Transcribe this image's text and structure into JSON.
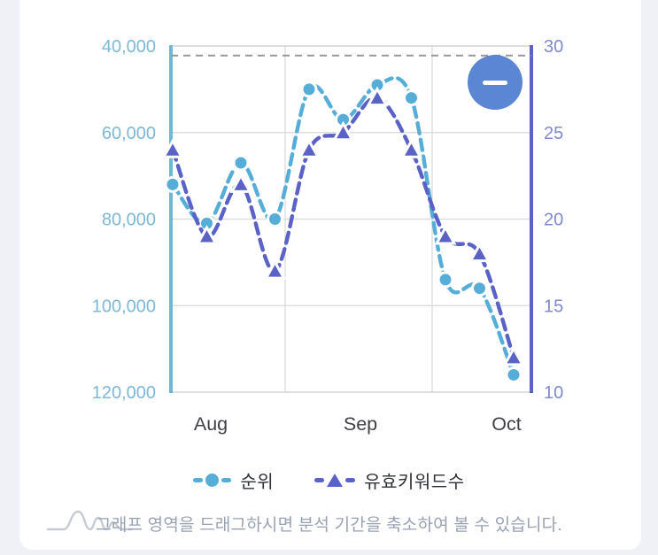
{
  "page": {
    "background": "#eff1f7",
    "card_background": "#ffffff"
  },
  "chart_data": {
    "type": "line",
    "title": "",
    "x_ticks": [
      "Aug",
      "Sep",
      "Oct"
    ],
    "grid": true,
    "legend_position": "bottom",
    "left_axis": {
      "min": 40000,
      "max": 120000,
      "direction": "values-increase-downward",
      "tick_labels": [
        "40,000",
        "60,000",
        "80,000",
        "100,000",
        "120,000"
      ],
      "color": "#7db8d6",
      "axis_line_color": "#6db7d8"
    },
    "right_axis": {
      "min": 10,
      "max": 30,
      "direction": "values-increase-upward",
      "tick_labels": [
        "30",
        "25",
        "20",
        "15",
        "10"
      ],
      "color": "#8089cb",
      "axis_line_color": "#5a63c4"
    },
    "reference_line": {
      "axis": "left",
      "value": 42200,
      "style": "dashed",
      "color": "#999999"
    },
    "series": [
      {
        "name": "순위",
        "axis": "left",
        "marker": "circle",
        "color": "#56aed8",
        "values": [
          72000,
          81000,
          67000,
          80000,
          50000,
          57000,
          49000,
          52000,
          94000,
          96000,
          116000
        ]
      },
      {
        "name": "유효키워드수",
        "axis": "right",
        "marker": "triangle",
        "color": "#5a62c8",
        "values": [
          24,
          19,
          22,
          17,
          24,
          25,
          27,
          24,
          19,
          18,
          12
        ]
      }
    ]
  },
  "controls": {
    "zoom_out_button": {
      "glyph": "minus",
      "color": "#5b86d3"
    }
  },
  "legend": {
    "items": [
      {
        "label": "순위",
        "color": "#56aed8",
        "marker": "circle"
      },
      {
        "label": "유효키워드수",
        "color": "#5a62c8",
        "marker": "triangle"
      }
    ]
  },
  "footer": {
    "hint_text": "그래프 영역을 드래그하시면 분석 기간을 축소하여 볼 수 있습니다."
  }
}
